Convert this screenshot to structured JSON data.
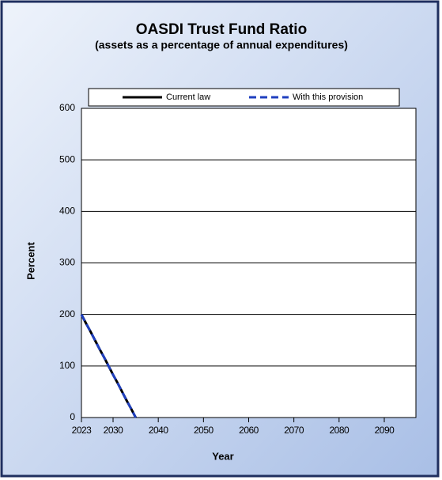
{
  "chart_data": {
    "type": "line",
    "title": "OASDI Trust Fund Ratio",
    "subtitle": "(assets as a percentage of annual expenditures)",
    "x_label": "Year",
    "y_label": "Percent",
    "x": [
      2023,
      2024,
      2025,
      2026,
      2027,
      2028,
      2029,
      2030,
      2031,
      2032,
      2033,
      2034,
      2035
    ],
    "series": [
      {
        "name": "Current law",
        "color": "#000000",
        "dash": false,
        "values": [
          200,
          183,
          167,
          150,
          133,
          117,
          100,
          83,
          67,
          50,
          33,
          17,
          0
        ]
      },
      {
        "name": "With this provision",
        "color": "#1f3fbf",
        "dash": true,
        "values": [
          200,
          183,
          167,
          150,
          133,
          117,
          100,
          83,
          67,
          50,
          33,
          17,
          0
        ]
      }
    ],
    "xlim": [
      2023,
      2097
    ],
    "xticks": [
      2023,
      2030,
      2040,
      2050,
      2060,
      2070,
      2080,
      2090
    ],
    "ylim": [
      0,
      600
    ],
    "yticks": [
      0,
      100,
      200,
      300,
      400,
      500,
      600
    ],
    "grid": true,
    "legend": "top"
  }
}
